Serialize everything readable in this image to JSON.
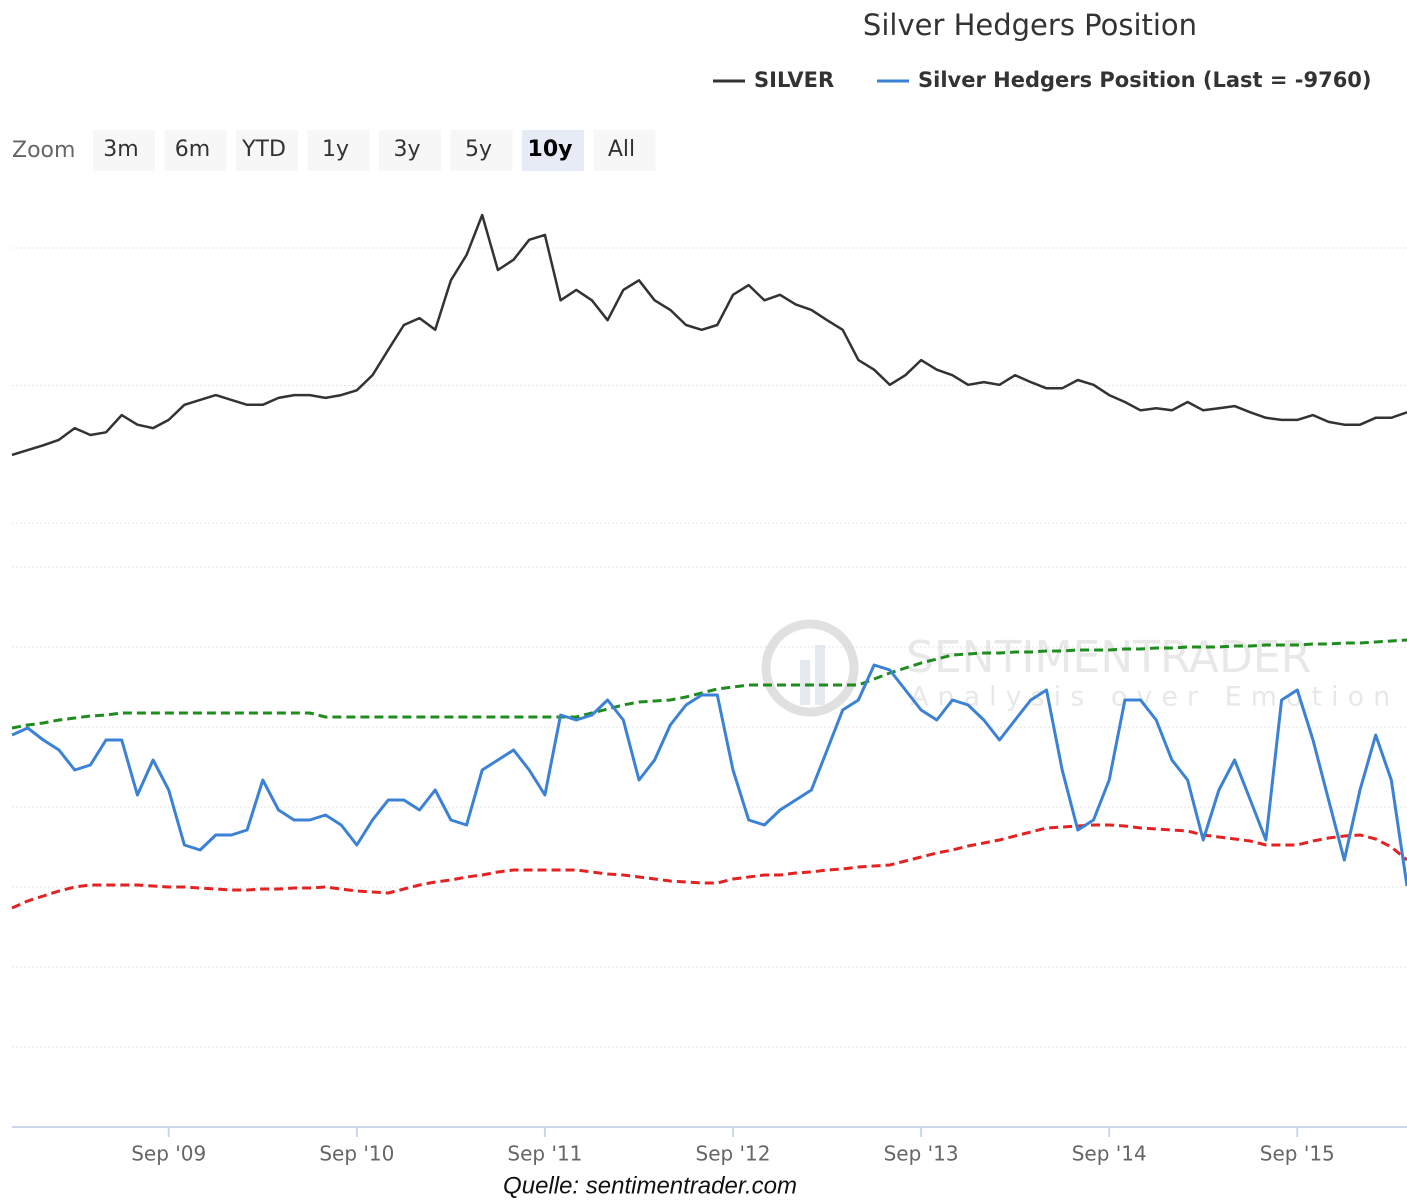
{
  "chart_data": {
    "type": "line",
    "title": "Silver Hedgers Position",
    "caption": "Quelle: sentimentrader.com",
    "watermark": {
      "brand": "SENTIMENTRADER",
      "tagline": "Analysis over Emotion"
    },
    "zoom": {
      "label": "Zoom",
      "buttons": [
        "3m",
        "6m",
        "YTD",
        "1y",
        "3y",
        "5y",
        "10y",
        "All"
      ],
      "selected": 6
    },
    "x": [
      "2008-11",
      "2008-12",
      "2009-01",
      "2009-02",
      "2009-03",
      "2009-04",
      "2009-05",
      "2009-06",
      "2009-07",
      "2009-08",
      "2009-09",
      "2009-10",
      "2009-11",
      "2009-12",
      "2010-01",
      "2010-02",
      "2010-03",
      "2010-04",
      "2010-05",
      "2010-06",
      "2010-07",
      "2010-08",
      "2010-09",
      "2010-10",
      "2010-11",
      "2010-12",
      "2011-01",
      "2011-02",
      "2011-03",
      "2011-04",
      "2011-05",
      "2011-06",
      "2011-07",
      "2011-08",
      "2011-09",
      "2011-10",
      "2011-11",
      "2011-12",
      "2012-01",
      "2012-02",
      "2012-03",
      "2012-04",
      "2012-05",
      "2012-06",
      "2012-07",
      "2012-08",
      "2012-09",
      "2012-10",
      "2012-11",
      "2012-12",
      "2013-01",
      "2013-02",
      "2013-03",
      "2013-04",
      "2013-05",
      "2013-06",
      "2013-07",
      "2013-08",
      "2013-09",
      "2013-10",
      "2013-11",
      "2013-12",
      "2014-01",
      "2014-02",
      "2014-03",
      "2014-04",
      "2014-05",
      "2014-06",
      "2014-07",
      "2014-08",
      "2014-09",
      "2014-10",
      "2014-11",
      "2014-12",
      "2015-01",
      "2015-02",
      "2015-03",
      "2015-04",
      "2015-05",
      "2015-06",
      "2015-07",
      "2015-08",
      "2015-09",
      "2015-10",
      "2015-11",
      "2015-12",
      "2016-01",
      "2016-02",
      "2016-03",
      "2016-04"
    ],
    "xlim": [
      "2008-11",
      "2016-04"
    ],
    "xticks": [
      {
        "value": "2009-09",
        "label": "Sep '09"
      },
      {
        "value": "2010-09",
        "label": "Sep '10"
      },
      {
        "value": "2011-09",
        "label": "Sep '11"
      },
      {
        "value": "2012-09",
        "label": "Sep '12"
      },
      {
        "value": "2013-09",
        "label": "Sep '13"
      },
      {
        "value": "2014-09",
        "label": "Sep '14"
      },
      {
        "value": "2015-09",
        "label": "Sep '15"
      }
    ],
    "ylim": [
      0,
      50
    ],
    "yticks": [
      0,
      20,
      40
    ],
    "y2lim": [
      -70000,
      70000
    ],
    "y2ticks": [
      -70000,
      -50000,
      -30000,
      -10000,
      10000,
      30000,
      50000,
      70000
    ],
    "grid": true,
    "legend": "top-right",
    "series": [
      {
        "name": "SILVER",
        "color": "#333333",
        "values": [
          9.9,
          10.6,
          11.3,
          12.1,
          13.8,
          12.8,
          13.2,
          15.7,
          14.3,
          13.8,
          15.0,
          17.2,
          17.9,
          18.6,
          17.9,
          17.2,
          17.2,
          18.2,
          18.6,
          18.6,
          18.2,
          18.6,
          19.3,
          21.5,
          25.2,
          28.8,
          29.8,
          28.1,
          35.3,
          39.0,
          44.8,
          36.8,
          38.3,
          41.2,
          41.9,
          32.4,
          33.9,
          32.4,
          29.5,
          33.9,
          35.3,
          32.4,
          31.0,
          28.8,
          28.1,
          28.8,
          33.2,
          34.6,
          32.4,
          33.2,
          31.8,
          31.0,
          29.5,
          28.1,
          23.7,
          22.3,
          20.1,
          21.5,
          23.7,
          22.3,
          21.5,
          20.1,
          20.5,
          20.1,
          21.5,
          20.5,
          19.6,
          19.6,
          20.8,
          20.1,
          18.6,
          17.6,
          16.4,
          16.7,
          16.4,
          17.6,
          16.4,
          16.7,
          17.0,
          16.1,
          15.3,
          15.0,
          15.0,
          15.7,
          14.7,
          14.3,
          14.3,
          15.3,
          15.3,
          16.1
        ]
      },
      {
        "name": "Silver Hedgers Position (Last = -9760)",
        "color": "#3b82d6",
        "axis": "y2",
        "values": [
          28000,
          29750,
          26750,
          24250,
          19250,
          20500,
          26750,
          26750,
          13000,
          21750,
          14250,
          500,
          -750,
          3000,
          3000,
          4250,
          16750,
          9250,
          6750,
          6750,
          8000,
          5500,
          500,
          6750,
          11750,
          11750,
          9250,
          14250,
          6750,
          5500,
          19250,
          21750,
          24250,
          19250,
          13000,
          33000,
          31750,
          33000,
          36750,
          31750,
          16750,
          21750,
          30500,
          35500,
          38000,
          38000,
          19250,
          6750,
          5500,
          9250,
          11750,
          14250,
          24250,
          34250,
          36750,
          45500,
          44250,
          39250,
          34250,
          31750,
          36750,
          35500,
          31750,
          26750,
          31750,
          36750,
          39250,
          19250,
          4250,
          6750,
          16750,
          36750,
          36750,
          31750,
          21750,
          16750,
          1750,
          14250,
          21750,
          11750,
          1750,
          36750,
          39250,
          26750,
          11750,
          -3250,
          14250,
          28000,
          16750,
          -9760
        ]
      },
      {
        "color": "#1e8c1e",
        "axis": "y2",
        "dashed": true,
        "values": [
          29750,
          30500,
          31000,
          31750,
          32250,
          32750,
          33000,
          33500,
          33500,
          33500,
          33500,
          33500,
          33500,
          33500,
          33500,
          33500,
          33500,
          33500,
          33500,
          33500,
          32500,
          32500,
          32500,
          32500,
          32500,
          32500,
          32500,
          32500,
          32500,
          32500,
          32500,
          32500,
          32500,
          32500,
          32500,
          32500,
          32500,
          33500,
          34500,
          35500,
          36250,
          36500,
          36750,
          37500,
          38500,
          39500,
          40000,
          40500,
          40500,
          40500,
          40500,
          40500,
          40500,
          40500,
          40500,
          42000,
          43500,
          44750,
          46000,
          47000,
          48000,
          48250,
          48500,
          48500,
          48750,
          48750,
          49000,
          49000,
          49250,
          49250,
          49250,
          49500,
          49500,
          49750,
          49750,
          50000,
          50000,
          50000,
          50250,
          50250,
          50500,
          50500,
          50500,
          50750,
          50750,
          51000,
          51000,
          51250,
          51500,
          51750
        ]
      },
      {
        "color": "#e32222",
        "axis": "y2",
        "dashed": true,
        "values": [
          -15250,
          -13500,
          -12250,
          -11000,
          -10000,
          -9500,
          -9500,
          -9500,
          -9500,
          -9750,
          -10000,
          -10000,
          -10250,
          -10500,
          -10750,
          -10750,
          -10500,
          -10500,
          -10250,
          -10250,
          -10000,
          -10500,
          -11000,
          -11250,
          -11500,
          -10500,
          -9500,
          -8750,
          -8250,
          -7500,
          -7000,
          -6250,
          -5750,
          -5750,
          -5750,
          -5750,
          -5750,
          -6250,
          -6750,
          -7000,
          -7500,
          -8000,
          -8500,
          -8750,
          -9000,
          -9000,
          -8000,
          -7500,
          -7000,
          -7000,
          -6500,
          -6250,
          -5750,
          -5500,
          -5000,
          -4750,
          -4500,
          -3500,
          -2500,
          -1500,
          -750,
          250,
          1000,
          1750,
          2750,
          3750,
          4750,
          5000,
          5250,
          5500,
          5500,
          5250,
          4750,
          4500,
          4250,
          4000,
          3000,
          2500,
          2000,
          1500,
          500,
          500,
          500,
          1500,
          2250,
          2750,
          3000,
          2000,
          0,
          -3250
        ]
      }
    ]
  }
}
